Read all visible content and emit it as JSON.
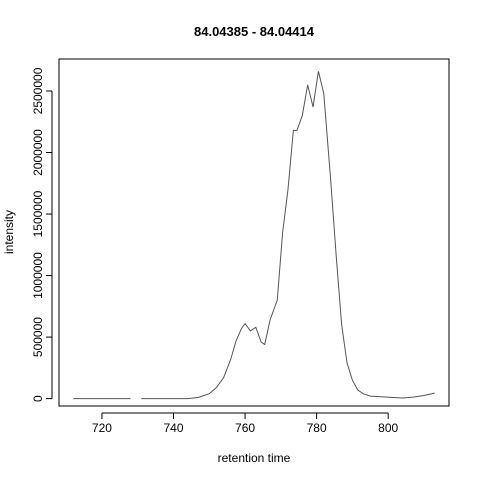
{
  "chart_data": {
    "type": "line",
    "title": "84.04385 - 84.04414",
    "xlabel": "retention time",
    "ylabel": "intensity",
    "xlim": [
      708,
      817
    ],
    "ylim": [
      -60000,
      2760000
    ],
    "x_ticks": [
      720,
      740,
      760,
      780,
      800
    ],
    "y_ticks": [
      0,
      500000,
      1000000,
      1500000,
      2000000,
      2500000
    ],
    "x_tick_labels": [
      "720",
      "740",
      "760",
      "780",
      "800"
    ],
    "y_tick_labels": [
      "0",
      "500000",
      "1000000",
      "1500000",
      "2000000",
      "2500000"
    ],
    "line_color": "#555555",
    "segments": [
      {
        "x": [
          712,
          716,
          720,
          724,
          728
        ],
        "y": [
          0,
          0,
          0,
          0,
          0
        ]
      },
      {
        "x": [
          731,
          735,
          740,
          744,
          747,
          750,
          752,
          754,
          756,
          757.5,
          759,
          760,
          761.5,
          763,
          764.5,
          765.5,
          767,
          769,
          770.5,
          772,
          773.5,
          774.5,
          776,
          777.5,
          779,
          780.5,
          782,
          784,
          785.5,
          787,
          788.5,
          790,
          791.5,
          793,
          795,
          798,
          801,
          804,
          807,
          810,
          813
        ],
        "y": [
          0,
          0,
          0,
          0,
          10000,
          40000,
          90000,
          170000,
          320000,
          470000,
          570000,
          610000,
          550000,
          580000,
          460000,
          440000,
          640000,
          800000,
          1350000,
          1700000,
          2180000,
          2180000,
          2300000,
          2550000,
          2370000,
          2660000,
          2480000,
          1750000,
          1150000,
          600000,
          290000,
          150000,
          70000,
          40000,
          20000,
          15000,
          10000,
          5000,
          12000,
          25000,
          45000
        ]
      }
    ]
  }
}
